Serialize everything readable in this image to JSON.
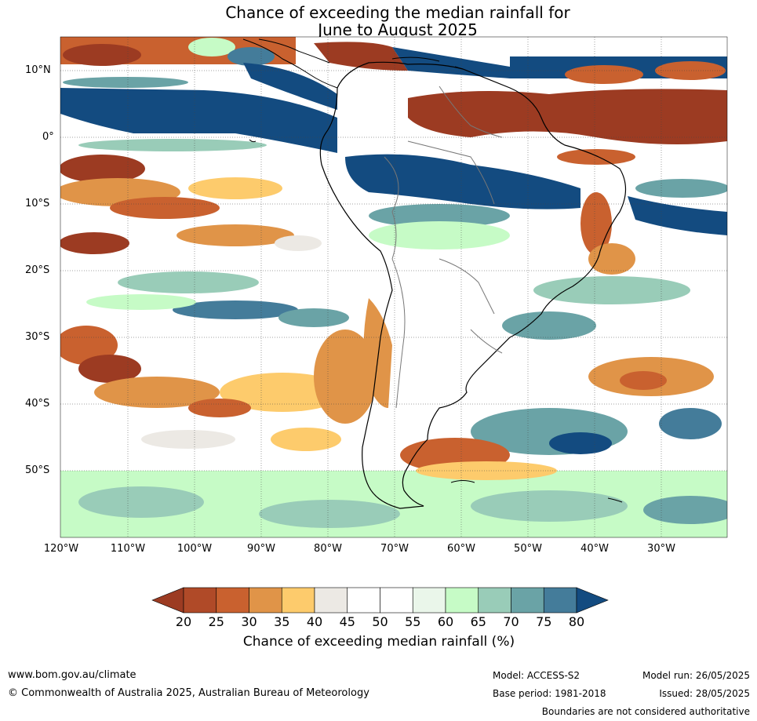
{
  "title": {
    "line1": "Chance of exceeding the median rainfall for",
    "line2": "June to August 2025"
  },
  "map": {
    "lat_labels": [
      "10°N",
      "0°",
      "10°S",
      "20°S",
      "30°S",
      "40°S",
      "50°S"
    ],
    "lon_labels": [
      "120°W",
      "110°W",
      "100°W",
      "90°W",
      "80°W",
      "70°W",
      "60°W",
      "50°W",
      "40°W",
      "30°W"
    ],
    "lat_values": [
      10,
      0,
      -10,
      -20,
      -30,
      -40,
      -50
    ],
    "lon_values": [
      -120,
      -110,
      -100,
      -90,
      -80,
      -70,
      -60,
      -50,
      -40,
      -30
    ],
    "extent": {
      "lon_min": -120,
      "lon_max": -20,
      "lat_min": -60,
      "lat_max": 15
    }
  },
  "colorbar": {
    "ticks": [
      "20",
      "25",
      "30",
      "35",
      "40",
      "45",
      "50",
      "55",
      "60",
      "65",
      "70",
      "75",
      "80"
    ],
    "colors": [
      "#9c3b22",
      "#b04a28",
      "#c9612f",
      "#e09448",
      "#fdcb6c",
      "#ece9e4",
      "#ffffff",
      "#ffffff",
      "#eaf6ea",
      "#c6fbc6",
      "#99ccb8",
      "#6aa3a6",
      "#447c9a",
      "#134b80"
    ],
    "label": "Chance of exceeding median rainfall (%)"
  },
  "footer": {
    "website": "www.bom.gov.au/climate",
    "copyright": "© Commonwealth of Australia 2025, Australian Bureau of Meteorology",
    "model": "Model: ACCESS-S2",
    "base_period": "Base period: 1981-2018",
    "model_run": "Model run: 26/05/2025",
    "issued": "Issued: 28/05/2025",
    "boundaries": "Boundaries are not considered authoritative"
  }
}
